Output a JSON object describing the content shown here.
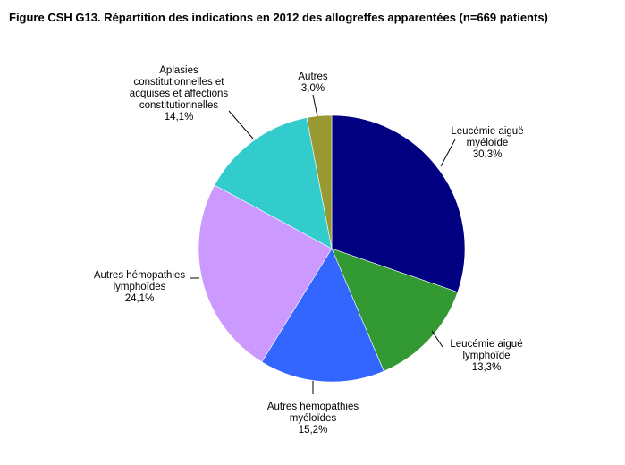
{
  "chart_data": {
    "type": "pie",
    "title": "Figure CSH G13. Répartition des indications en 2012 des allogreffes apparentées (n=669 patients)",
    "slices": [
      {
        "lines": [
          "Leucémie aiguë",
          "myéloïde"
        ],
        "value": 30.3,
        "pct_label": "30,3%",
        "color": "#000080"
      },
      {
        "lines": [
          "Leucémie aiguë",
          "lymphoïde"
        ],
        "value": 13.3,
        "pct_label": "13,3%",
        "color": "#339933"
      },
      {
        "lines": [
          "Autres hémopathies",
          "myéloïdes"
        ],
        "value": 15.2,
        "pct_label": "15,2%",
        "color": "#3366ff"
      },
      {
        "lines": [
          "Autres hémopathies",
          "lymphoïdes"
        ],
        "value": 24.1,
        "pct_label": "24,1%",
        "color": "#cc99ff"
      },
      {
        "lines": [
          "Aplasies",
          "constitutionnelles et",
          "acquises et affections",
          "constitutionnelles"
        ],
        "value": 14.1,
        "pct_label": "14,1%",
        "color": "#33cccc"
      },
      {
        "lines": [
          "Autres"
        ],
        "value": 3.0,
        "pct_label": "3,0%",
        "color": "#999933"
      }
    ]
  }
}
